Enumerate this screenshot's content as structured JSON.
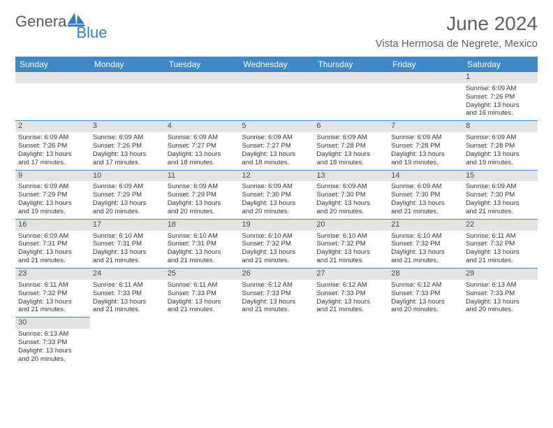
{
  "logo": {
    "general": "Genera",
    "blue": "Blue"
  },
  "header": {
    "month_title": "June 2024",
    "location": "Vista Hermosa de Negrete, Mexico"
  },
  "colors": {
    "header_bg": "#3b8bc8",
    "header_text": "#ffffff",
    "daynum_bg": "#e4e4e4",
    "border": "#3b8bc8",
    "logo_gray": "#5a5a5a",
    "logo_blue": "#2f7fc2"
  },
  "days_of_week": [
    "Sunday",
    "Monday",
    "Tuesday",
    "Wednesday",
    "Thursday",
    "Friday",
    "Saturday"
  ],
  "weeks": [
    [
      {
        "blank": true
      },
      {
        "blank": true
      },
      {
        "blank": true
      },
      {
        "blank": true
      },
      {
        "blank": true
      },
      {
        "blank": true
      },
      {
        "n": "1",
        "sunrise": "Sunrise: 6:09 AM",
        "sunset": "Sunset: 7:26 PM",
        "day1": "Daylight: 13 hours",
        "day2": "and 16 minutes."
      }
    ],
    [
      {
        "n": "2",
        "sunrise": "Sunrise: 6:09 AM",
        "sunset": "Sunset: 7:26 PM",
        "day1": "Daylight: 13 hours",
        "day2": "and 17 minutes."
      },
      {
        "n": "3",
        "sunrise": "Sunrise: 6:09 AM",
        "sunset": "Sunset: 7:26 PM",
        "day1": "Daylight: 13 hours",
        "day2": "and 17 minutes."
      },
      {
        "n": "4",
        "sunrise": "Sunrise: 6:09 AM",
        "sunset": "Sunset: 7:27 PM",
        "day1": "Daylight: 13 hours",
        "day2": "and 18 minutes."
      },
      {
        "n": "5",
        "sunrise": "Sunrise: 6:09 AM",
        "sunset": "Sunset: 7:27 PM",
        "day1": "Daylight: 13 hours",
        "day2": "and 18 minutes."
      },
      {
        "n": "6",
        "sunrise": "Sunrise: 6:09 AM",
        "sunset": "Sunset: 7:28 PM",
        "day1": "Daylight: 13 hours",
        "day2": "and 18 minutes."
      },
      {
        "n": "7",
        "sunrise": "Sunrise: 6:09 AM",
        "sunset": "Sunset: 7:28 PM",
        "day1": "Daylight: 13 hours",
        "day2": "and 19 minutes."
      },
      {
        "n": "8",
        "sunrise": "Sunrise: 6:09 AM",
        "sunset": "Sunset: 7:28 PM",
        "day1": "Daylight: 13 hours",
        "day2": "and 19 minutes."
      }
    ],
    [
      {
        "n": "9",
        "sunrise": "Sunrise: 6:09 AM",
        "sunset": "Sunset: 7:29 PM",
        "day1": "Daylight: 13 hours",
        "day2": "and 19 minutes."
      },
      {
        "n": "10",
        "sunrise": "Sunrise: 6:09 AM",
        "sunset": "Sunset: 7:29 PM",
        "day1": "Daylight: 13 hours",
        "day2": "and 20 minutes."
      },
      {
        "n": "11",
        "sunrise": "Sunrise: 6:09 AM",
        "sunset": "Sunset: 7:29 PM",
        "day1": "Daylight: 13 hours",
        "day2": "and 20 minutes."
      },
      {
        "n": "12",
        "sunrise": "Sunrise: 6:09 AM",
        "sunset": "Sunset: 7:30 PM",
        "day1": "Daylight: 13 hours",
        "day2": "and 20 minutes."
      },
      {
        "n": "13",
        "sunrise": "Sunrise: 6:09 AM",
        "sunset": "Sunset: 7:30 PM",
        "day1": "Daylight: 13 hours",
        "day2": "and 20 minutes."
      },
      {
        "n": "14",
        "sunrise": "Sunrise: 6:09 AM",
        "sunset": "Sunset: 7:30 PM",
        "day1": "Daylight: 13 hours",
        "day2": "and 21 minutes."
      },
      {
        "n": "15",
        "sunrise": "Sunrise: 6:09 AM",
        "sunset": "Sunset: 7:30 PM",
        "day1": "Daylight: 13 hours",
        "day2": "and 21 minutes."
      }
    ],
    [
      {
        "n": "16",
        "sunrise": "Sunrise: 6:09 AM",
        "sunset": "Sunset: 7:31 PM",
        "day1": "Daylight: 13 hours",
        "day2": "and 21 minutes."
      },
      {
        "n": "17",
        "sunrise": "Sunrise: 6:10 AM",
        "sunset": "Sunset: 7:31 PM",
        "day1": "Daylight: 13 hours",
        "day2": "and 21 minutes."
      },
      {
        "n": "18",
        "sunrise": "Sunrise: 6:10 AM",
        "sunset": "Sunset: 7:31 PM",
        "day1": "Daylight: 13 hours",
        "day2": "and 21 minutes."
      },
      {
        "n": "19",
        "sunrise": "Sunrise: 6:10 AM",
        "sunset": "Sunset: 7:32 PM",
        "day1": "Daylight: 13 hours",
        "day2": "and 21 minutes."
      },
      {
        "n": "20",
        "sunrise": "Sunrise: 6:10 AM",
        "sunset": "Sunset: 7:32 PM",
        "day1": "Daylight: 13 hours",
        "day2": "and 21 minutes."
      },
      {
        "n": "21",
        "sunrise": "Sunrise: 6:10 AM",
        "sunset": "Sunset: 7:32 PM",
        "day1": "Daylight: 13 hours",
        "day2": "and 21 minutes."
      },
      {
        "n": "22",
        "sunrise": "Sunrise: 6:11 AM",
        "sunset": "Sunset: 7:32 PM",
        "day1": "Daylight: 13 hours",
        "day2": "and 21 minutes."
      }
    ],
    [
      {
        "n": "23",
        "sunrise": "Sunrise: 6:11 AM",
        "sunset": "Sunset: 7:32 PM",
        "day1": "Daylight: 13 hours",
        "day2": "and 21 minutes."
      },
      {
        "n": "24",
        "sunrise": "Sunrise: 6:11 AM",
        "sunset": "Sunset: 7:33 PM",
        "day1": "Daylight: 13 hours",
        "day2": "and 21 minutes."
      },
      {
        "n": "25",
        "sunrise": "Sunrise: 6:11 AM",
        "sunset": "Sunset: 7:33 PM",
        "day1": "Daylight: 13 hours",
        "day2": "and 21 minutes."
      },
      {
        "n": "26",
        "sunrise": "Sunrise: 6:12 AM",
        "sunset": "Sunset: 7:33 PM",
        "day1": "Daylight: 13 hours",
        "day2": "and 21 minutes."
      },
      {
        "n": "27",
        "sunrise": "Sunrise: 6:12 AM",
        "sunset": "Sunset: 7:33 PM",
        "day1": "Daylight: 13 hours",
        "day2": "and 21 minutes."
      },
      {
        "n": "28",
        "sunrise": "Sunrise: 6:12 AM",
        "sunset": "Sunset: 7:33 PM",
        "day1": "Daylight: 13 hours",
        "day2": "and 20 minutes."
      },
      {
        "n": "29",
        "sunrise": "Sunrise: 6:13 AM",
        "sunset": "Sunset: 7:33 PM",
        "day1": "Daylight: 13 hours",
        "day2": "and 20 minutes."
      }
    ],
    [
      {
        "n": "30",
        "sunrise": "Sunrise: 6:13 AM",
        "sunset": "Sunset: 7:33 PM",
        "day1": "Daylight: 13 hours",
        "day2": "and 20 minutes."
      },
      {
        "empty": true
      },
      {
        "empty": true
      },
      {
        "empty": true
      },
      {
        "empty": true
      },
      {
        "empty": true
      },
      {
        "empty": true
      }
    ]
  ]
}
